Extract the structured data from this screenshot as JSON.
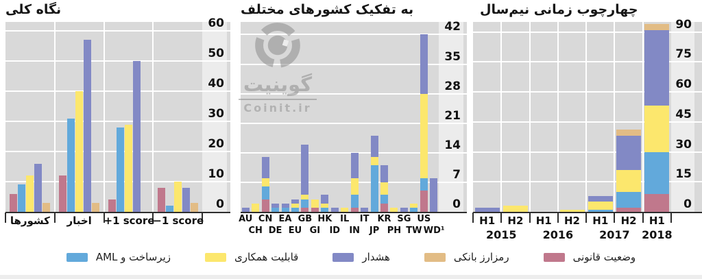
{
  "colors": {
    "legal_red": "#c0788c",
    "aml_blue": "#62a9db",
    "interop_yellow": "#fce76d",
    "warning_purple": "#8289c5",
    "bank_tan": "#e2bc85",
    "plot_bg": "#d9d9d9",
    "strip_bg": "#ececec",
    "grid_white": "#ffffff",
    "axis_dark": "#2e2e2e"
  },
  "watermark": {
    "brand_fa": "گوینیت",
    "site": "Coinit.ir"
  },
  "legend": {
    "items": [
      {
        "label": "زیرساخت و AML",
        "color_key": "aml_blue"
      },
      {
        "label": "قابلیت همکاری",
        "color_key": "interop_yellow"
      },
      {
        "label": "هشدار",
        "color_key": "warning_purple"
      },
      {
        "label": "رمزارز بانکی",
        "color_key": "bank_tan"
      },
      {
        "label": "وضعیت قانونی",
        "color_key": "legal_red"
      }
    ]
  },
  "chart_data": [
    {
      "type": "bar",
      "layout": "grouped",
      "title": "نگاه کلی",
      "categories": [
        "کشورها",
        "اخبار",
        "+1 score",
        "−1 score"
      ],
      "yticks": [
        0,
        10,
        20,
        30,
        40,
        50,
        60
      ],
      "ylim": [
        0,
        63
      ],
      "grid": true,
      "series": [
        {
          "name": "وضعیت قانونی",
          "color_key": "legal_red",
          "values": [
            6,
            12,
            4,
            8
          ]
        },
        {
          "name": "زیرساخت و AML",
          "color_key": "aml_blue",
          "values": [
            9,
            31,
            28,
            2
          ]
        },
        {
          "name": "قابلیت همکاری",
          "color_key": "interop_yellow",
          "values": [
            12,
            40,
            29,
            10
          ]
        },
        {
          "name": "هشدار",
          "color_key": "warning_purple",
          "values": [
            16,
            57,
            50,
            8
          ]
        },
        {
          "name": "رمزارز بانکی",
          "color_key": "bank_tan",
          "values": [
            3,
            3,
            0,
            3
          ]
        }
      ]
    },
    {
      "type": "bar",
      "layout": "stacked",
      "title": "به تفکیک کشورهای مختلف",
      "categories": [
        "AU",
        "CH",
        "CN",
        "DE",
        "EA",
        "EU",
        "GB",
        "GI",
        "HK",
        "ID",
        "IL",
        "IN",
        "IT",
        "JP",
        "KR",
        "PH",
        "SG",
        "TW",
        "US",
        "WD¹"
      ],
      "yticks": [
        0,
        7,
        14,
        21,
        28,
        35,
        42
      ],
      "ylim": [
        0,
        45
      ],
      "grid": true,
      "label_rows": 2,
      "series": [
        {
          "name": "وضعیت قانونی",
          "color_key": "legal_red",
          "values": [
            0,
            0,
            3,
            0,
            0,
            0,
            1,
            1,
            0,
            0,
            0,
            1,
            0,
            0,
            2,
            0,
            0,
            0,
            5,
            0
          ]
        },
        {
          "name": "زیرساخت و AML",
          "color_key": "aml_blue",
          "values": [
            0,
            0,
            3,
            1,
            1,
            1,
            2,
            0,
            1,
            0,
            0,
            3,
            0,
            11,
            2,
            0,
            0,
            1,
            3,
            0
          ]
        },
        {
          "name": "قابلیت همکاری",
          "color_key": "interop_yellow",
          "values": [
            0,
            2,
            2,
            0,
            0,
            1,
            1,
            2,
            1,
            0,
            1,
            4,
            0,
            2,
            3,
            1,
            0,
            1,
            20,
            0
          ]
        },
        {
          "name": "هشدار",
          "color_key": "warning_purple",
          "values": [
            1,
            0,
            5,
            1,
            1,
            1,
            12,
            0,
            2,
            1,
            0,
            6,
            1,
            5,
            4,
            0,
            1,
            0,
            14,
            8
          ]
        },
        {
          "name": "رمزارز بانکی",
          "color_key": "bank_tan",
          "values": [
            0,
            0,
            0,
            0,
            0,
            0,
            0,
            0,
            0,
            0,
            0,
            0,
            0,
            0,
            0,
            0,
            0,
            0,
            0,
            0
          ]
        }
      ]
    },
    {
      "type": "bar",
      "layout": "stacked",
      "title": "چهارچوب زمانی نیم‌سال",
      "categories": [
        "H1",
        "H2",
        "H1",
        "H2",
        "H1",
        "H2",
        "H1"
      ],
      "year_groups": [
        {
          "label": "2015",
          "span": [
            0,
            1
          ]
        },
        {
          "label": "2016",
          "span": [
            2,
            3
          ]
        },
        {
          "label": "2017",
          "span": [
            4,
            5
          ]
        },
        {
          "label": "2018",
          "span": [
            6,
            6
          ]
        }
      ],
      "yticks": [
        0,
        15,
        30,
        45,
        60,
        75,
        90
      ],
      "ylim": [
        0,
        95
      ],
      "grid": true,
      "series": [
        {
          "name": "وضعیت قانونی",
          "color_key": "legal_red",
          "values": [
            0,
            0,
            0,
            0,
            0,
            2,
            9
          ]
        },
        {
          "name": "زیرساخت و AML",
          "color_key": "aml_blue",
          "values": [
            0,
            0,
            0,
            0,
            1,
            8,
            21
          ]
        },
        {
          "name": "قابلیت همکاری",
          "color_key": "interop_yellow",
          "values": [
            0,
            3,
            0,
            1,
            4,
            11,
            23
          ]
        },
        {
          "name": "هشدار",
          "color_key": "warning_purple",
          "values": [
            2,
            0,
            0,
            0,
            3,
            17,
            38
          ]
        },
        {
          "name": "رمزارز بانکی",
          "color_key": "bank_tan",
          "values": [
            0,
            0,
            0,
            0,
            0,
            3,
            3
          ]
        }
      ]
    }
  ]
}
